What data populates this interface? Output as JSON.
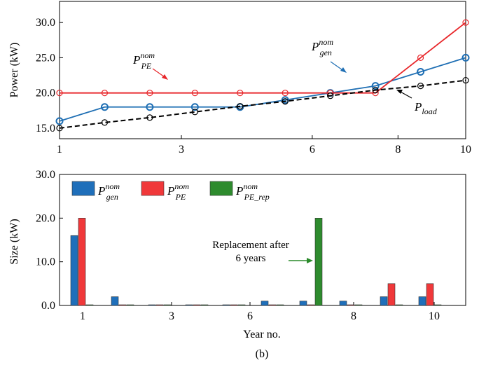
{
  "colors": {
    "gen": "#1f6fb4",
    "pe": "#e8262a",
    "load": "#000000",
    "rep": "#2a8a2a",
    "gen_bar": "#1f6fba",
    "pe_bar": "#f0383a",
    "rep_bar": "#2e8b2e"
  },
  "caption": "(b)",
  "chart_data": [
    {
      "type": "line",
      "ylabel": "Power (kW)",
      "xticks": [
        "1",
        "3",
        "6",
        "8",
        "10"
      ],
      "yticks": [
        "15.0",
        "20.0",
        "25.0",
        "30.0"
      ],
      "xlim": [
        1,
        10
      ],
      "ylim": [
        13.5,
        33
      ],
      "grid": false,
      "x": [
        1,
        2,
        3,
        4,
        5,
        6,
        7,
        8,
        9,
        10
      ],
      "series": [
        {
          "key": "gen",
          "values": [
            16,
            18,
            18,
            18,
            18,
            19,
            20,
            21,
            23,
            25
          ]
        },
        {
          "key": "pe",
          "values": [
            20,
            20,
            20,
            20,
            20,
            20,
            20,
            20,
            25,
            30
          ]
        },
        {
          "key": "load",
          "values": [
            15,
            15.8,
            16.5,
            17.3,
            18.1,
            18.8,
            19.6,
            20.4,
            21,
            21.8
          ]
        }
      ],
      "annotations": {
        "pe": {
          "sym": "P",
          "sub": "PE",
          "sup": "nom"
        },
        "gen": {
          "sym": "P",
          "sub": "gen",
          "sup": "nom"
        },
        "load": {
          "sym": "P",
          "sub": "load"
        }
      }
    },
    {
      "type": "bar",
      "xlabel": "Year no.",
      "ylabel": "Size (kW)",
      "xticks": [
        "1",
        "3",
        "6",
        "8",
        "10"
      ],
      "yticks": [
        "0.0",
        "10.0",
        "20.0",
        "30.0"
      ],
      "ylim": [
        0,
        30
      ],
      "grid": false,
      "legend_position": "top-left",
      "categories": [
        1,
        2,
        3,
        4,
        5,
        6,
        7,
        8,
        9,
        10
      ],
      "series": [
        {
          "key": "gen",
          "legend": {
            "sym": "P",
            "sub": "gen",
            "sup": "nom"
          },
          "values": [
            16,
            2,
            0,
            0,
            0,
            1,
            1,
            1,
            2,
            2
          ]
        },
        {
          "key": "pe",
          "legend": {
            "sym": "P",
            "sub": "PE",
            "sup": "nom"
          },
          "values": [
            20,
            0,
            0,
            0,
            0,
            0,
            0,
            0,
            5,
            5
          ]
        },
        {
          "key": "rep",
          "legend": {
            "sym": "P",
            "sub": "PE_rep",
            "sup": "nom"
          },
          "values": [
            0,
            0,
            0,
            0,
            0,
            0,
            20,
            0,
            0,
            0
          ]
        }
      ],
      "annotation": {
        "line1": "Replacement after",
        "line2": "6 years"
      }
    }
  ]
}
